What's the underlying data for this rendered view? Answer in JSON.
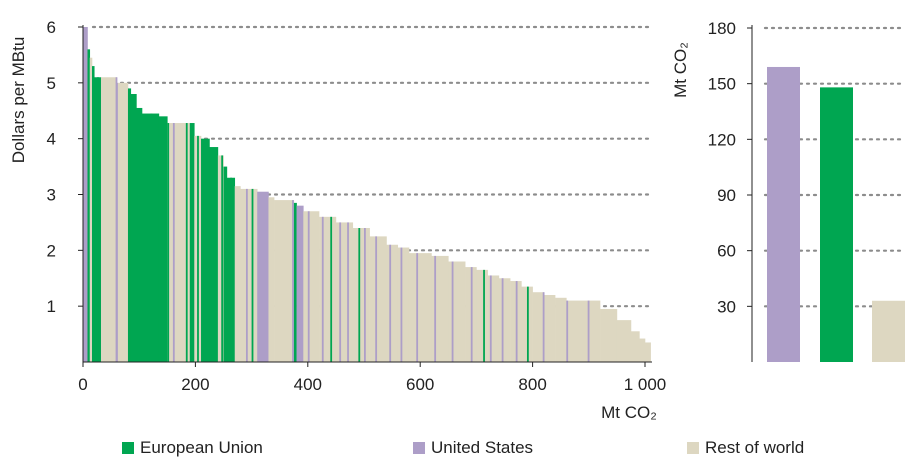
{
  "chart_data": [
    {
      "type": "bar",
      "chart_style": "sorted step supply curve (bar widths in Mt CO2)",
      "xlabel": "Mt CO₂",
      "ylabel": "Dollars per MBtu",
      "xlim": [
        0,
        1010
      ],
      "ylim": [
        0,
        6
      ],
      "x_ticks": [
        "0",
        "200",
        "400",
        "600",
        "800",
        "1 000"
      ],
      "y_ticks": [
        "1",
        "2",
        "3",
        "4",
        "5",
        "6"
      ],
      "grid": "horizontal dotted",
      "segments": [
        {
          "x0": 0,
          "x1": 8,
          "value": 6.0,
          "series": "United States"
        },
        {
          "x0": 8,
          "x1": 12,
          "value": 5.6,
          "series": "European Union"
        },
        {
          "x0": 12,
          "x1": 16,
          "value": 5.45,
          "series": "Rest of world"
        },
        {
          "x0": 16,
          "x1": 20,
          "value": 5.3,
          "series": "European Union"
        },
        {
          "x0": 20,
          "x1": 32,
          "value": 5.1,
          "series": "European Union"
        },
        {
          "x0": 32,
          "x1": 60,
          "value": 5.1,
          "series": "Rest of world"
        },
        {
          "x0": 60,
          "x1": 62,
          "value": 5.0,
          "series": "United States"
        },
        {
          "x0": 62,
          "x1": 80,
          "value": 5.0,
          "series": "Rest of world"
        },
        {
          "x0": 80,
          "x1": 85,
          "value": 4.9,
          "series": "European Union"
        },
        {
          "x0": 85,
          "x1": 95,
          "value": 4.8,
          "series": "European Union"
        },
        {
          "x0": 95,
          "x1": 105,
          "value": 4.55,
          "series": "European Union"
        },
        {
          "x0": 105,
          "x1": 135,
          "value": 4.45,
          "series": "European Union"
        },
        {
          "x0": 135,
          "x1": 150,
          "value": 4.4,
          "series": "European Union"
        },
        {
          "x0": 150,
          "x1": 190,
          "value": 4.28,
          "series": "Rest of world"
        },
        {
          "x0": 190,
          "x1": 198,
          "value": 4.28,
          "series": "European Union"
        },
        {
          "x0": 198,
          "x1": 210,
          "value": 4.05,
          "series": "Rest of world"
        },
        {
          "x0": 210,
          "x1": 225,
          "value": 4.0,
          "series": "European Union"
        },
        {
          "x0": 225,
          "x1": 240,
          "value": 3.85,
          "series": "European Union"
        },
        {
          "x0": 240,
          "x1": 250,
          "value": 3.7,
          "series": "Rest of world"
        },
        {
          "x0": 250,
          "x1": 256,
          "value": 3.5,
          "series": "European Union"
        },
        {
          "x0": 256,
          "x1": 270,
          "value": 3.3,
          "series": "European Union"
        },
        {
          "x0": 270,
          "x1": 280,
          "value": 3.15,
          "series": "Rest of world"
        },
        {
          "x0": 280,
          "x1": 310,
          "value": 3.1,
          "series": "Rest of world"
        },
        {
          "x0": 310,
          "x1": 330,
          "value": 3.05,
          "series": "United States"
        },
        {
          "x0": 330,
          "x1": 340,
          "value": 2.95,
          "series": "Rest of world"
        },
        {
          "x0": 340,
          "x1": 375,
          "value": 2.9,
          "series": "Rest of world"
        },
        {
          "x0": 375,
          "x1": 380,
          "value": 2.85,
          "series": "European Union"
        },
        {
          "x0": 380,
          "x1": 392,
          "value": 2.8,
          "series": "United States"
        },
        {
          "x0": 392,
          "x1": 420,
          "value": 2.7,
          "series": "Rest of world"
        },
        {
          "x0": 420,
          "x1": 450,
          "value": 2.6,
          "series": "Rest of world"
        },
        {
          "x0": 450,
          "x1": 480,
          "value": 2.5,
          "series": "Rest of world"
        },
        {
          "x0": 480,
          "x1": 510,
          "value": 2.4,
          "series": "Rest of world"
        },
        {
          "x0": 510,
          "x1": 540,
          "value": 2.25,
          "series": "Rest of world"
        },
        {
          "x0": 540,
          "x1": 560,
          "value": 2.1,
          "series": "Rest of world"
        },
        {
          "x0": 560,
          "x1": 580,
          "value": 2.05,
          "series": "Rest of world"
        },
        {
          "x0": 580,
          "x1": 620,
          "value": 1.95,
          "series": "Rest of world"
        },
        {
          "x0": 620,
          "x1": 650,
          "value": 1.9,
          "series": "Rest of world"
        },
        {
          "x0": 650,
          "x1": 680,
          "value": 1.8,
          "series": "Rest of world"
        },
        {
          "x0": 680,
          "x1": 700,
          "value": 1.7,
          "series": "Rest of world"
        },
        {
          "x0": 700,
          "x1": 720,
          "value": 1.65,
          "series": "Rest of world"
        },
        {
          "x0": 720,
          "x1": 740,
          "value": 1.55,
          "series": "Rest of world"
        },
        {
          "x0": 740,
          "x1": 760,
          "value": 1.5,
          "series": "Rest of world"
        },
        {
          "x0": 760,
          "x1": 780,
          "value": 1.45,
          "series": "Rest of world"
        },
        {
          "x0": 780,
          "x1": 800,
          "value": 1.35,
          "series": "Rest of world"
        },
        {
          "x0": 800,
          "x1": 820,
          "value": 1.25,
          "series": "Rest of world"
        },
        {
          "x0": 820,
          "x1": 840,
          "value": 1.2,
          "series": "Rest of world"
        },
        {
          "x0": 840,
          "x1": 860,
          "value": 1.15,
          "series": "Rest of world"
        },
        {
          "x0": 860,
          "x1": 920,
          "value": 1.1,
          "series": "Rest of world"
        },
        {
          "x0": 920,
          "x1": 950,
          "value": 0.95,
          "series": "Rest of world"
        },
        {
          "x0": 950,
          "x1": 975,
          "value": 0.75,
          "series": "Rest of world"
        },
        {
          "x0": 975,
          "x1": 990,
          "value": 0.55,
          "series": "Rest of world"
        },
        {
          "x0": 990,
          "x1": 1000,
          "value": 0.42,
          "series": "Rest of world"
        },
        {
          "x0": 1000,
          "x1": 1010,
          "value": 0.35,
          "series": "Rest of world"
        }
      ],
      "stripes": [
        {
          "x": 25,
          "series": "European Union"
        },
        {
          "x": 58,
          "series": "United States"
        },
        {
          "x": 120,
          "series": "European Union"
        },
        {
          "x": 150,
          "series": "European Union"
        },
        {
          "x": 160,
          "series": "United States"
        },
        {
          "x": 183,
          "series": "European Union"
        },
        {
          "x": 203,
          "series": "European Union"
        },
        {
          "x": 246,
          "series": "European Union"
        },
        {
          "x": 262,
          "series": "European Union"
        },
        {
          "x": 290,
          "series": "United States"
        },
        {
          "x": 300,
          "series": "European Union"
        },
        {
          "x": 372,
          "series": "United States"
        },
        {
          "x": 400,
          "series": "United States"
        },
        {
          "x": 425,
          "series": "United States"
        },
        {
          "x": 440,
          "series": "European Union"
        },
        {
          "x": 456,
          "series": "United States"
        },
        {
          "x": 470,
          "series": "United States"
        },
        {
          "x": 490,
          "series": "European Union"
        },
        {
          "x": 500,
          "series": "United States"
        },
        {
          "x": 520,
          "series": "United States"
        },
        {
          "x": 545,
          "series": "United States"
        },
        {
          "x": 565,
          "series": "United States"
        },
        {
          "x": 593,
          "series": "United States"
        },
        {
          "x": 625,
          "series": "United States"
        },
        {
          "x": 656,
          "series": "United States"
        },
        {
          "x": 690,
          "series": "United States"
        },
        {
          "x": 712,
          "series": "European Union"
        },
        {
          "x": 724,
          "series": "United States"
        },
        {
          "x": 745,
          "series": "United States"
        },
        {
          "x": 770,
          "series": "United States"
        },
        {
          "x": 790,
          "series": "European Union"
        },
        {
          "x": 818,
          "series": "United States"
        },
        {
          "x": 860,
          "series": "United States"
        },
        {
          "x": 898,
          "series": "United States"
        }
      ]
    },
    {
      "type": "bar",
      "ylabel": "Mt CO₂",
      "ylim": [
        0,
        180
      ],
      "y_ticks": [
        "30",
        "60",
        "90",
        "120",
        "150",
        "180"
      ],
      "grid": "horizontal dotted",
      "categories": [
        "United States",
        "European Union",
        "Rest of world"
      ],
      "values": [
        159,
        148,
        33
      ]
    }
  ],
  "legend": [
    {
      "label": "European Union",
      "color": "#00a651"
    },
    {
      "label": "United States",
      "color": "#ad9ec8"
    },
    {
      "label": "Rest of world",
      "color": "#ddd7c1"
    }
  ],
  "colors": {
    "European Union": "#00a651",
    "United States": "#ad9ec8",
    "Rest of world": "#ddd7c1",
    "grid": "#8c8c8c",
    "axis": "#222222"
  }
}
